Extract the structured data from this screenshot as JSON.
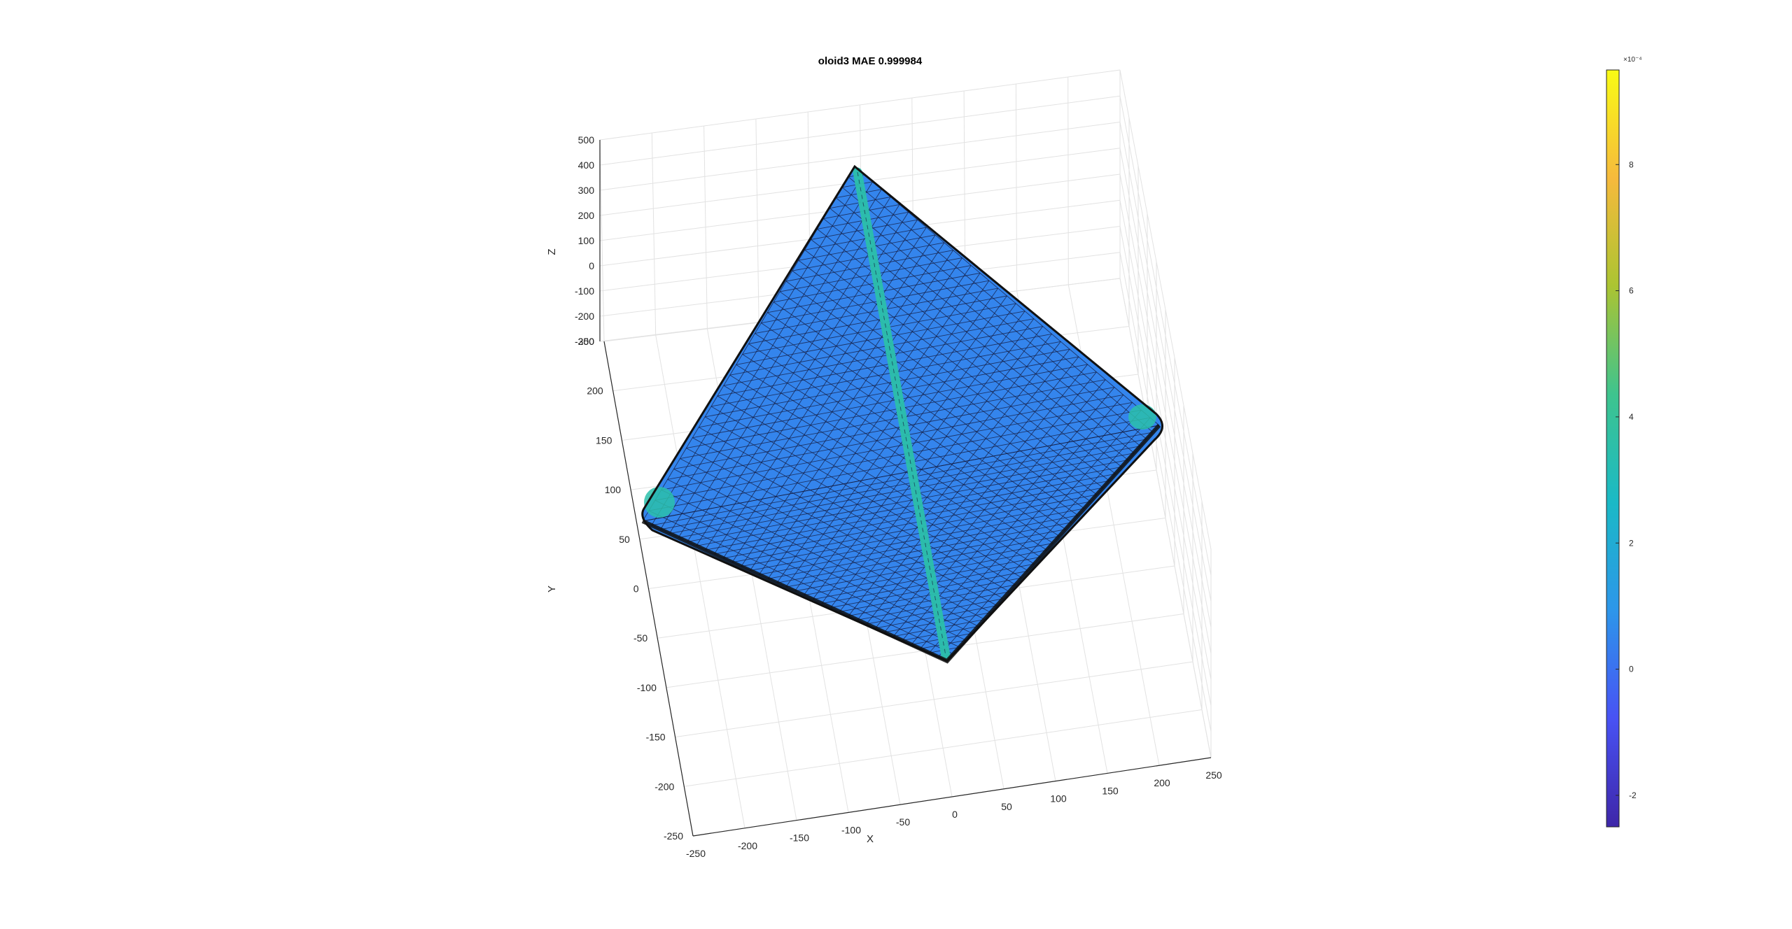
{
  "chart_data": {
    "type": "surface3d",
    "title": "oloid3 MAE 0.999984",
    "xlabel": "X",
    "ylabel": "Y",
    "zlabel": "Z",
    "xlim": [
      -250,
      250
    ],
    "ylim": [
      -250,
      250
    ],
    "zlim": [
      -300,
      500
    ],
    "x_ticks": [
      "-250",
      "-200",
      "-150",
      "-100",
      "-50",
      "0",
      "50",
      "100",
      "150",
      "200",
      "250"
    ],
    "y_ticks": [
      "-250",
      "-200",
      "-150",
      "-100",
      "-50",
      "0",
      "50",
      "100",
      "150",
      "200",
      "250"
    ],
    "z_ticks": [
      "-300",
      "-200",
      "-100",
      "0",
      "100",
      "200",
      "300",
      "400",
      "500"
    ],
    "grid": true,
    "mesh": "triangulated",
    "colormap": "parula",
    "colormap_colors": [
      "#3e26a8",
      "#4852f4",
      "#2d96ea",
      "#1ab9c6",
      "#3ec48e",
      "#abc432",
      "#f6ba3c",
      "#f9fb15"
    ],
    "surface_value_typical": 5e-05,
    "ridge_value_typical": 0.00035,
    "colorbar": {
      "range": [
        -0.00025,
        0.00095
      ],
      "ticks": [
        "-2",
        "0",
        "2",
        "4",
        "6",
        "8"
      ],
      "tick_values": [
        -0.0002,
        0,
        0.0002,
        0.0004,
        0.0006,
        0.0008
      ],
      "exponent": "×10⁻⁴",
      "placement": "right"
    }
  }
}
